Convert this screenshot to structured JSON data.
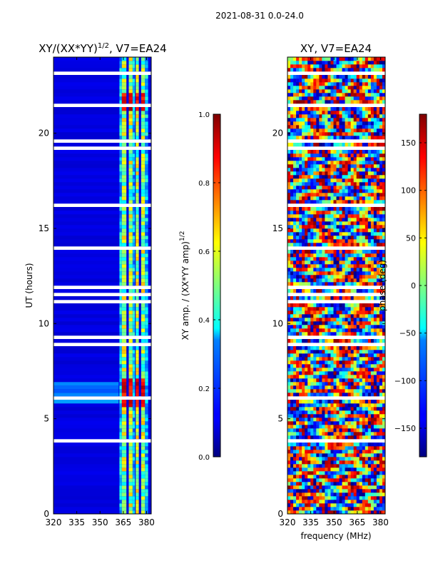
{
  "suptitle": "2021-08-31 0.0-24.0",
  "xlabel_common": "frequency (MHz)",
  "chart_data": [
    {
      "type": "heatmap",
      "title_prefix": "XY/(XX*YY)",
      "title_sup": "1/2",
      "title_suffix": ", V7=EA24",
      "ylabel": "UT (hours)",
      "x_ticks": [
        320,
        335,
        350,
        365,
        380
      ],
      "xlim": [
        320,
        383
      ],
      "y_ticks": [
        0,
        5,
        10,
        15,
        20
      ],
      "ylim": [
        0,
        24
      ],
      "colormap": "jet",
      "colorbar": {
        "label_prefix": "XY amp. / (XX*YY amp)",
        "label_sup": "1/2",
        "range": [
          0.0,
          1.0
        ],
        "ticks": [
          "0.0",
          "0.2",
          "0.4",
          "0.6",
          "0.8",
          "1.0"
        ],
        "tick_values": [
          0.0,
          0.2,
          0.4,
          0.6,
          0.8,
          1.0
        ]
      }
    },
    {
      "type": "heatmap",
      "title": "XY, V7=EA24",
      "x_ticks": [
        320,
        335,
        350,
        365,
        380
      ],
      "xlim": [
        320,
        383
      ],
      "y_ticks": [
        0,
        5,
        10,
        15,
        20
      ],
      "ylim": [
        0,
        24
      ],
      "colormap": "jet",
      "colorbar": {
        "label": "phase (deg)",
        "range": [
          -180,
          180
        ],
        "ticks": [
          "150",
          "100",
          "50",
          "0",
          "−50",
          "−100",
          "−150"
        ],
        "tick_values": [
          150,
          100,
          50,
          0,
          -50,
          -100,
          -150
        ]
      }
    }
  ]
}
